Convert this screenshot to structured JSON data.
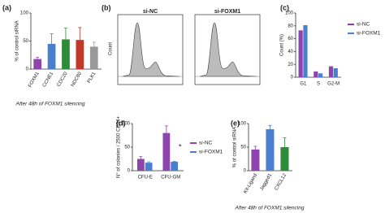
{
  "chart_data": [
    {
      "type": "bar",
      "panel_label": "(a)",
      "ylabel": "% of control siRNA",
      "note": "After 48h of FOXM1 silencing",
      "categories": [
        "FOXM1",
        "CCNE1",
        "CDC20",
        "NDC80",
        "PLK1"
      ],
      "values": [
        18,
        45,
        53,
        52,
        40
      ],
      "errors": [
        3,
        18,
        20,
        22,
        8
      ],
      "colors": [
        "#8e44ad",
        "#4a7fd0",
        "#2e8b3a",
        "#c0392b",
        "#999999"
      ],
      "ylim": [
        0,
        100
      ],
      "yticks": [
        0,
        50,
        100
      ]
    },
    {
      "type": "flow",
      "panel_label": "(b)",
      "ylabel": "Count",
      "panels": [
        "si-NC",
        "si-FOXM1"
      ]
    },
    {
      "type": "bar",
      "panel_label": "(c)",
      "ylabel": "Count (%)",
      "categories": [
        "G1",
        "S",
        "G2-M"
      ],
      "series": [
        {
          "name": "si-NC",
          "color": "#8e44ad",
          "values": [
            73,
            9,
            17
          ]
        },
        {
          "name": "si-FOXM1",
          "color": "#4a7fd0",
          "values": [
            81,
            6,
            14
          ]
        }
      ],
      "ylim": [
        0,
        100
      ],
      "yticks": [
        0,
        20,
        40,
        60,
        80,
        100
      ]
    },
    {
      "type": "bar",
      "panel_label": "(d)",
      "ylabel": "N° of colonies / 2500 CD34+",
      "annotation": "*",
      "categories": [
        "CFU-E",
        "CFU-GM"
      ],
      "series": [
        {
          "name": "si-NC",
          "color": "#8e44ad",
          "values": [
            25,
            80
          ],
          "errors": [
            5,
            15
          ]
        },
        {
          "name": "si-FOXM1",
          "color": "#4a7fd0",
          "values": [
            17,
            19
          ],
          "errors": [
            2,
            1
          ]
        }
      ],
      "ylim": [
        0,
        100
      ],
      "yticks": [
        0,
        50,
        100
      ]
    },
    {
      "type": "bar",
      "panel_label": "(e)",
      "ylabel": "% of control siRNA",
      "note": "After 48h of FOXM1 silencing",
      "categories": [
        "Kit-Ligand",
        "Jagged1",
        "CXCL12"
      ],
      "values": [
        45,
        88,
        50
      ],
      "errors": [
        7,
        8,
        20
      ],
      "colors": [
        "#8e44ad",
        "#4a7fd0",
        "#2e8b3a"
      ],
      "ylim": [
        0,
        100
      ],
      "yticks": [
        0,
        50,
        100
      ]
    }
  ]
}
